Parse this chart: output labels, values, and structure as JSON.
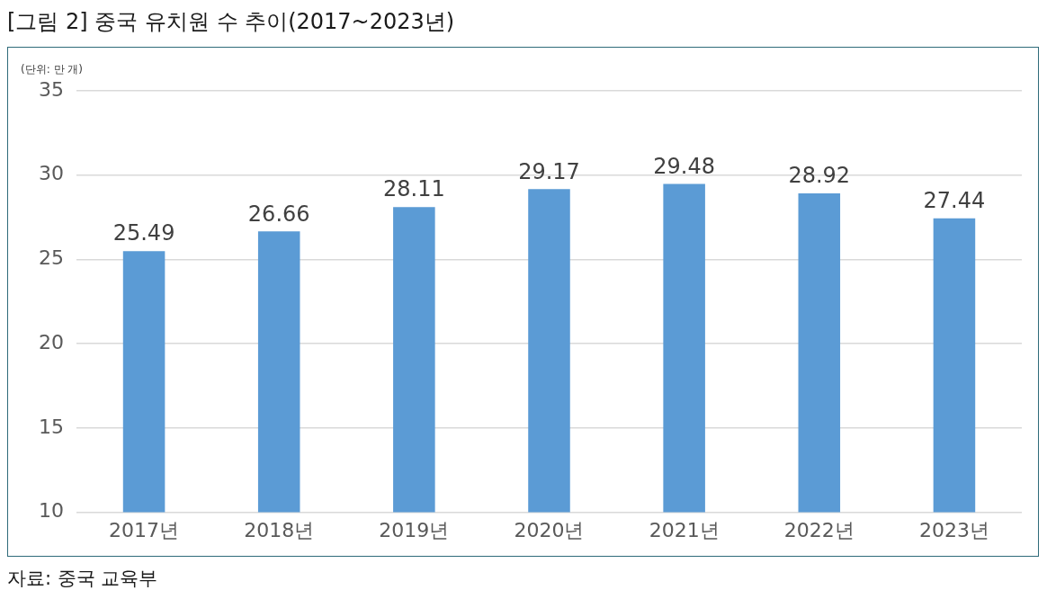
{
  "chart_data": {
    "type": "bar",
    "title": "[그림 2] 중국 유치원 수 추이(2017~2023년)",
    "ylabel": "(단위: 만 개)",
    "categories": [
      "2017년",
      "2018년",
      "2019년",
      "2020년",
      "2021년",
      "2022년",
      "2023년"
    ],
    "values": [
      25.49,
      26.66,
      28.11,
      29.17,
      29.48,
      28.92,
      27.44
    ],
    "color": "#5b9bd5",
    "ylim": [
      10,
      35
    ],
    "yticks": [
      10,
      15,
      20,
      25,
      30,
      35
    ],
    "grid": "y",
    "legend": false,
    "data_labels": true,
    "annotations": [
      "자료: 중국 교육부"
    ]
  }
}
